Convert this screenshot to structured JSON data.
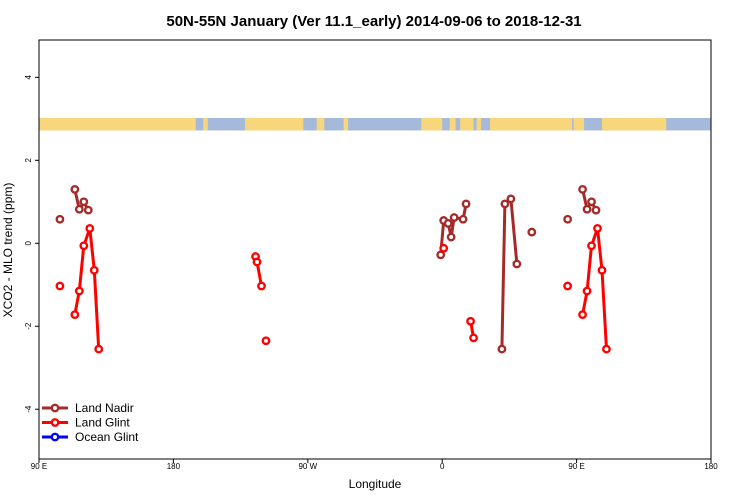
{
  "chart_data": {
    "type": "line",
    "title": "50N-55N January (Ver 11.1_early)   2014-09-06 to 2018-12-31",
    "xlabel": "Longitude",
    "ylabel": "XCO2 - MLO trend (ppm)",
    "x_unwrapped_range": [
      90,
      540
    ],
    "ylim": [
      -5.2,
      4.9
    ],
    "x_ticks": [
      {
        "value": 90,
        "label": "90 E"
      },
      {
        "value": 180,
        "label": "180"
      },
      {
        "value": 270,
        "label": "90 W"
      },
      {
        "value": 360,
        "label": "0"
      },
      {
        "value": 450,
        "label": "90 E"
      },
      {
        "value": 540,
        "label": "180"
      }
    ],
    "y_ticks": [
      {
        "value": 4,
        "label": "4"
      },
      {
        "value": 2,
        "label": "2"
      },
      {
        "value": 0,
        "label": "0"
      },
      {
        "value": -2,
        "label": "-2"
      },
      {
        "value": -4,
        "label": "-4"
      }
    ],
    "legend_position": "bottom-left",
    "series": [
      {
        "name": "Land Nadir",
        "color": "#a52a2a",
        "segments": [
          [
            [
              104,
              0.58
            ]
          ],
          [
            [
              114,
              1.3
            ],
            [
              117,
              0.82
            ],
            [
              120,
              1.0
            ],
            [
              123,
              0.8
            ]
          ],
          [
            [
              359,
              -0.28
            ],
            [
              361,
              0.55
            ],
            [
              364,
              0.48
            ],
            [
              366,
              0.15
            ],
            [
              368,
              0.62
            ],
            [
              374,
              0.58
            ],
            [
              376,
              0.95
            ]
          ],
          [
            [
              400,
              -2.55
            ],
            [
              402,
              0.95
            ],
            [
              406,
              1.07
            ],
            [
              410,
              -0.5
            ]
          ],
          [
            [
              420,
              0.27
            ]
          ],
          [
            [
              444,
              0.58
            ]
          ],
          [
            [
              454,
              1.3
            ],
            [
              457,
              0.82
            ],
            [
              460,
              1.0
            ],
            [
              463,
              0.8
            ]
          ]
        ]
      },
      {
        "name": "Land Glint",
        "color": "#ff0000",
        "segments": [
          [
            [
              104,
              -1.03
            ]
          ],
          [
            [
              114,
              -1.72
            ],
            [
              117,
              -1.15
            ],
            [
              120,
              -0.06
            ],
            [
              124,
              0.36
            ],
            [
              127,
              -0.65
            ],
            [
              130,
              -2.55
            ]
          ],
          [
            [
              235,
              -0.32
            ],
            [
              236,
              -0.45
            ],
            [
              239,
              -1.03
            ]
          ],
          [
            [
              242,
              -2.35
            ]
          ],
          [
            [
              361,
              -0.12
            ]
          ],
          [
            [
              379,
              -1.88
            ],
            [
              381,
              -2.28
            ]
          ],
          [
            [
              444,
              -1.03
            ]
          ],
          [
            [
              454,
              -1.72
            ],
            [
              457,
              -1.15
            ],
            [
              460,
              -0.06
            ],
            [
              464,
              0.36
            ],
            [
              467,
              -0.65
            ],
            [
              470,
              -2.55
            ]
          ]
        ]
      },
      {
        "name": "Ocean Glint",
        "color": "#0000ff",
        "segments": []
      }
    ],
    "land_ocean_strip": {
      "y_range": [
        2.72,
        3.02
      ],
      "ocean_color": "#a5b9da",
      "land_color": "#f8d67c",
      "land_spans": [
        [
          90,
          195
        ],
        [
          200,
          203
        ],
        [
          228,
          267
        ],
        [
          276,
          281
        ],
        [
          294,
          297
        ],
        [
          346,
          360
        ],
        [
          365,
          369
        ],
        [
          372,
          381
        ],
        [
          383,
          386
        ],
        [
          392,
          447
        ],
        [
          448,
          455
        ],
        [
          467,
          510
        ]
      ]
    }
  }
}
